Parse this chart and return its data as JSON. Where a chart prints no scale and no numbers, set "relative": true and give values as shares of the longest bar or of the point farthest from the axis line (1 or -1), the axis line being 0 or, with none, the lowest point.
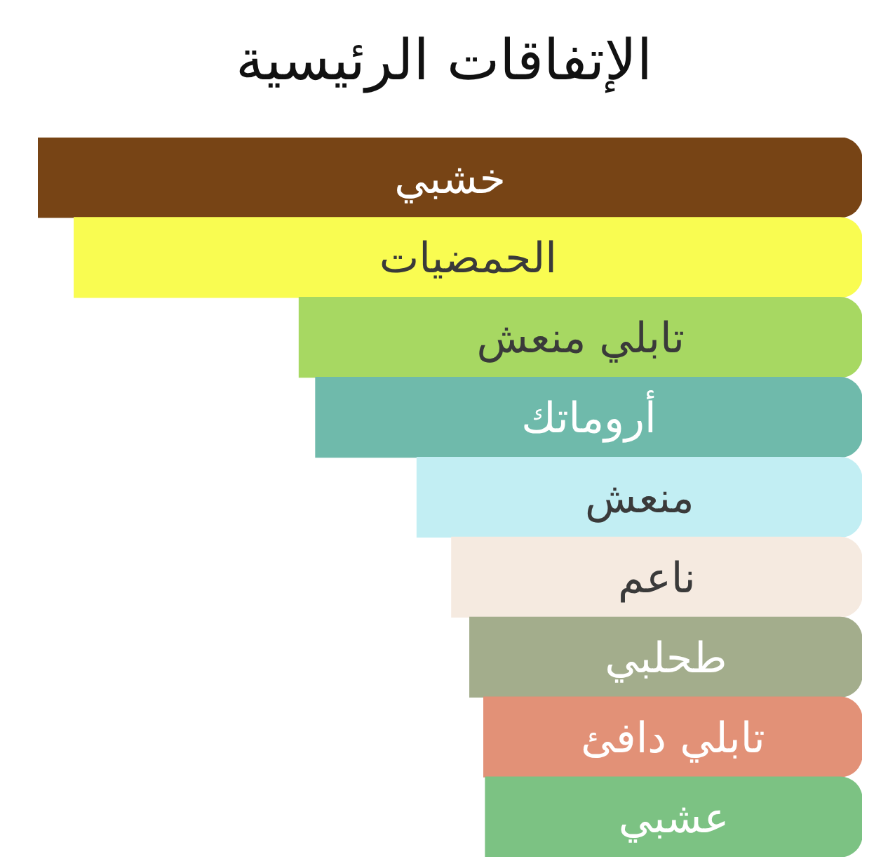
{
  "chart_data": {
    "type": "bar",
    "orientation": "horizontal",
    "relative": true,
    "title": "الإتفاقات الرئيسية",
    "categories": [
      "خشبي",
      "الحمضيات",
      "تابلي منعش",
      "أروماتك",
      "منعش",
      "ناعم",
      "طحلبي",
      "تابلي دافئ",
      "عشبي"
    ],
    "values": [
      1,
      0.956,
      0.683,
      0.663,
      0.54,
      0.498,
      0.476,
      0.459,
      0.457
    ],
    "colors": [
      "#774415",
      "#f9fc51",
      "#a7d862",
      "#6fbaab",
      "#c2eef3",
      "#f5eae0",
      "#a3ad8c",
      "#e29177",
      "#7cc283"
    ]
  }
}
